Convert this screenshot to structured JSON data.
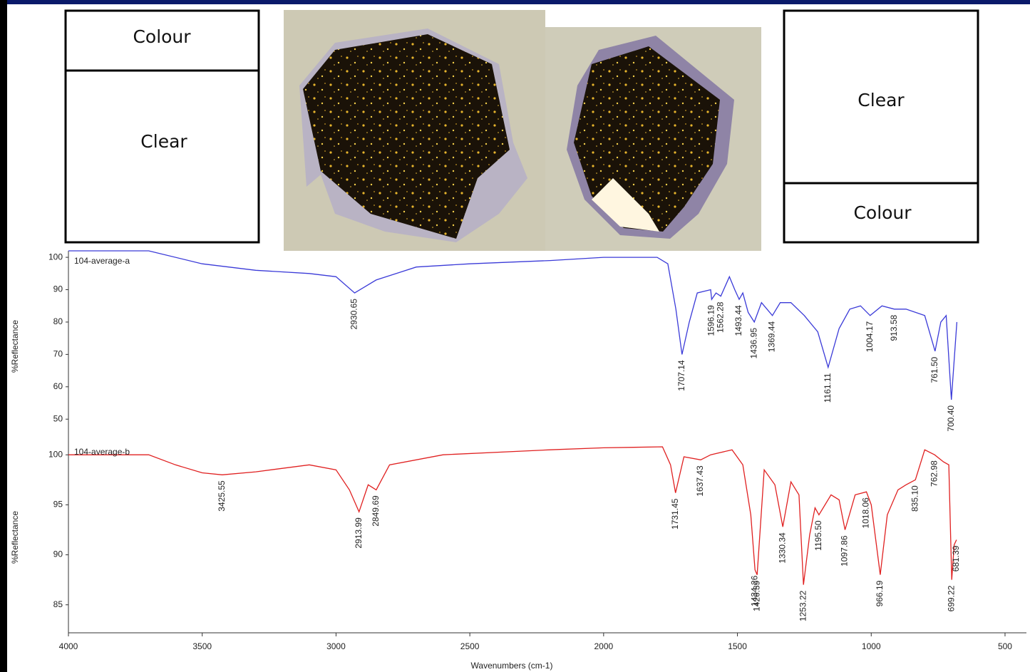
{
  "panels": {
    "left": {
      "top": "Colour",
      "bottom": "Clear"
    },
    "right": {
      "top": "Clear",
      "bottom": "Colour"
    }
  },
  "chart_data": [
    {
      "type": "line",
      "ylabel": "%Reflectance",
      "xlim": [
        4000,
        420
      ],
      "ylim": [
        43,
        102
      ],
      "yticks": [
        50,
        60,
        70,
        80,
        90,
        100
      ],
      "x": [
        4000,
        3700,
        3500,
        3300,
        3100,
        3000,
        2930.65,
        2850,
        2700,
        2500,
        2200,
        2000,
        1800,
        1760,
        1730,
        1707.14,
        1680,
        1650,
        1600,
        1596.19,
        1580,
        1562.28,
        1530,
        1510,
        1493.44,
        1480,
        1460,
        1436.95,
        1410,
        1369.44,
        1340,
        1300,
        1250,
        1200,
        1161.11,
        1120,
        1080,
        1040,
        1004.17,
        960,
        913.58,
        870,
        800,
        761.5,
        740,
        720,
        700.4,
        680
      ],
      "series": [
        {
          "name": "104-average-a",
          "color": "#3a3ad8",
          "values": [
            102,
            102,
            98,
            96,
            95,
            94,
            89,
            93,
            97,
            98,
            99,
            100,
            100,
            98,
            84,
            70,
            80,
            89,
            90,
            87,
            89,
            88,
            94,
            90,
            87,
            89,
            83,
            80,
            86,
            82,
            86,
            86,
            82,
            77,
            66,
            78,
            84,
            85,
            82,
            85,
            84,
            84,
            82,
            71,
            80,
            82,
            56,
            80
          ]
        }
      ],
      "annotations": [
        {
          "x": 2930.65,
          "label": "2930.65"
        },
        {
          "x": 1707.14,
          "label": "1707.14"
        },
        {
          "x": 1596.19,
          "label": "1596.19"
        },
        {
          "x": 1562.28,
          "label": "1562.28"
        },
        {
          "x": 1493.44,
          "label": "1493.44"
        },
        {
          "x": 1436.95,
          "label": "1436.95"
        },
        {
          "x": 1369.44,
          "label": "1369.44"
        },
        {
          "x": 1161.11,
          "label": "1161.11"
        },
        {
          "x": 1004.17,
          "label": "1004.17"
        },
        {
          "x": 913.58,
          "label": "913.58"
        },
        {
          "x": 761.5,
          "label": "761.50"
        },
        {
          "x": 700.4,
          "label": "700.40"
        }
      ]
    },
    {
      "type": "line",
      "ylabel": "%Reflectance",
      "xlabel": "Wavenumbers (cm-1)",
      "xlim": [
        4000,
        420
      ],
      "ylim": [
        82.2,
        101.3
      ],
      "yticks": [
        85,
        90,
        95,
        100
      ],
      "xticks": [
        4000,
        3500,
        3000,
        2500,
        2000,
        1500,
        1000,
        500
      ],
      "x": [
        4000,
        3700,
        3600,
        3500,
        3425.55,
        3300,
        3100,
        3000,
        2950,
        2913.99,
        2880,
        2849.69,
        2800,
        2600,
        2200,
        2000,
        1780,
        1750,
        1731.45,
        1700,
        1637.43,
        1600,
        1520,
        1480,
        1450,
        1434.26,
        1426.39,
        1400,
        1360,
        1330.34,
        1300,
        1270,
        1253.22,
        1230,
        1210,
        1195.5,
        1150,
        1120,
        1097.86,
        1060,
        1018.06,
        1000,
        966.19,
        940,
        900,
        870,
        835.1,
        800,
        762.98,
        730,
        710,
        699.22,
        690,
        681.39
      ],
      "series": [
        {
          "name": "104-average-b",
          "color": "#e02020",
          "values": [
            100,
            100,
            99,
            98.2,
            98,
            98.3,
            99,
            98.5,
            96.5,
            94.3,
            97,
            96.5,
            99,
            100,
            100.5,
            100.7,
            100.8,
            99,
            96.2,
            99.8,
            99.5,
            100,
            100.5,
            99,
            94,
            88.5,
            88,
            98.5,
            97,
            92.8,
            97.3,
            96,
            87,
            92,
            94.7,
            94,
            96,
            95.5,
            92.5,
            96,
            96.3,
            95,
            88,
            94,
            96.5,
            97,
            97.5,
            100.5,
            100,
            99.3,
            99,
            87.5,
            91,
            91.5
          ]
        }
      ],
      "annotations": [
        {
          "x": 3425.55,
          "label": "3425.55"
        },
        {
          "x": 2913.99,
          "label": "2913.99"
        },
        {
          "x": 2849.69,
          "label": "2849.69"
        },
        {
          "x": 1731.45,
          "label": "1731.45"
        },
        {
          "x": 1637.43,
          "label": "1637.43"
        },
        {
          "x": 1434.26,
          "label": "1434.26"
        },
        {
          "x": 1426.39,
          "label": "1426.39"
        },
        {
          "x": 1330.34,
          "label": "1330.34"
        },
        {
          "x": 1253.22,
          "label": "1253.22"
        },
        {
          "x": 1195.5,
          "label": "1195.50"
        },
        {
          "x": 1097.86,
          "label": "1097.86"
        },
        {
          "x": 1018.06,
          "label": "1018.06"
        },
        {
          "x": 966.19,
          "label": "966.19"
        },
        {
          "x": 835.1,
          "label": "835.10"
        },
        {
          "x": 762.98,
          "label": "762.98"
        },
        {
          "x": 699.22,
          "label": "699.22"
        },
        {
          "x": 681.39,
          "label": "681.39"
        }
      ]
    }
  ]
}
